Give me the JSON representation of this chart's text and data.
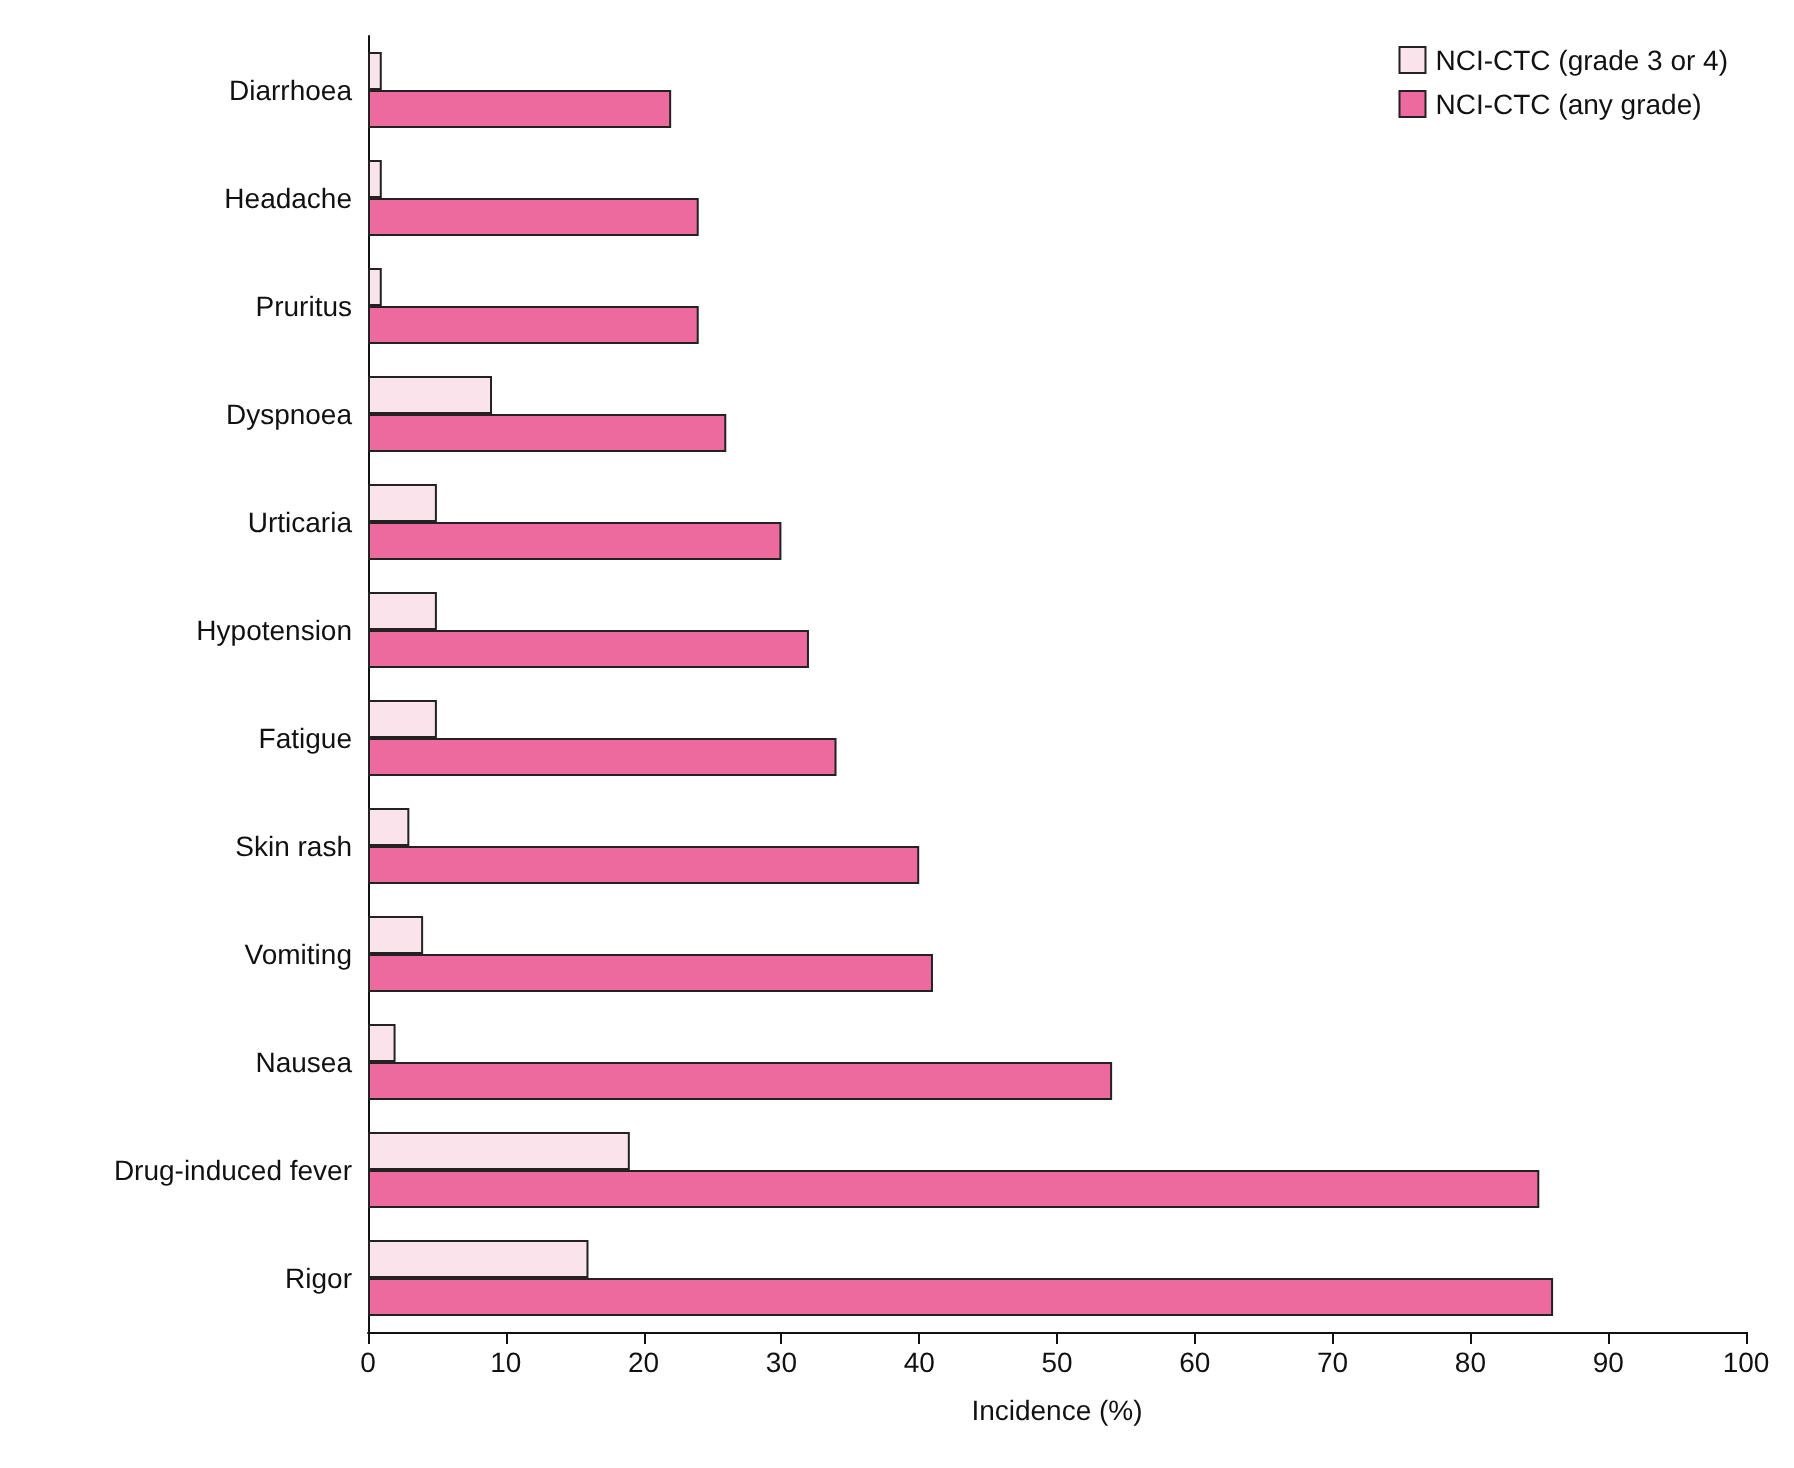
{
  "chart_data": {
    "type": "bar",
    "orientation": "horizontal",
    "xlabel": "Incidence (%)",
    "categories": [
      "Diarrhoea",
      "Headache",
      "Pruritus",
      "Dyspnoea",
      "Urticaria",
      "Hypotension",
      "Fatigue",
      "Skin rash",
      "Vomiting",
      "Nausea",
      "Drug-induced fever",
      "Rigor"
    ],
    "series": [
      {
        "name": "NCI-CTC (grade 3 or 4)",
        "color": "#fbe3ec",
        "values": [
          1,
          1,
          1,
          9,
          5,
          5,
          5,
          3,
          4,
          2,
          19,
          16
        ]
      },
      {
        "name": "NCI-CTC (any grade)",
        "color": "#ec6a9e",
        "values": [
          22,
          24,
          24,
          26,
          30,
          32,
          34,
          40,
          41,
          54,
          85,
          86
        ]
      }
    ],
    "xlim": [
      0,
      100
    ],
    "xticks": [
      0,
      10,
      20,
      30,
      40,
      50,
      60,
      70,
      80,
      90,
      100
    ],
    "grid": false,
    "legend": "top right"
  }
}
